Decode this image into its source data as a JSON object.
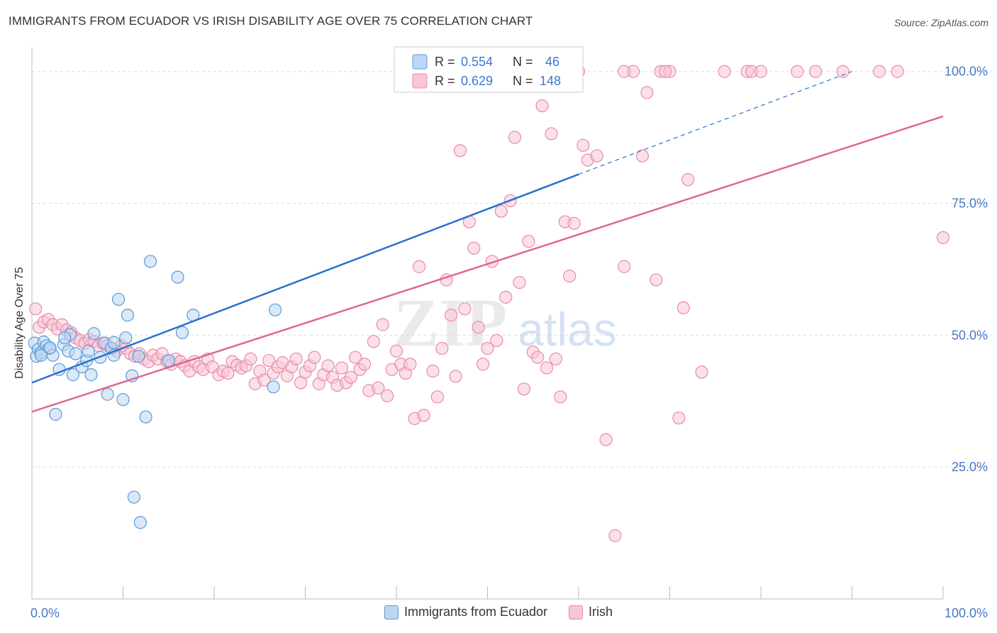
{
  "title": "IMMIGRANTS FROM ECUADOR VS IRISH DISABILITY AGE OVER 75 CORRELATION CHART",
  "source": "Source: ZipAtlas.com",
  "watermark": {
    "zip": "ZIP",
    "atlas": "atlas"
  },
  "colors": {
    "blue": "#5b9bd5",
    "blue_fill": "#bcd6f3",
    "blue_line": "#2a6fcf",
    "pink": "#e88aab",
    "pink_fill": "#f8c6d5",
    "pink_line": "#e0678f",
    "tick_label": "#4a78c8",
    "grid": "#dddddd"
  },
  "legend": {
    "rows": [
      {
        "r_label": "R =",
        "r_value": "0.554",
        "n_label": "N =",
        "n_value": "46",
        "color": "blue"
      },
      {
        "r_label": "R =",
        "r_value": "0.629",
        "n_label": "N =",
        "n_value": "148",
        "color": "pink"
      }
    ]
  },
  "chart_data": {
    "type": "scatter",
    "title": "IMMIGRANTS FROM ECUADOR VS IRISH DISABILITY AGE OVER 75 CORRELATION CHART",
    "xlabel": "",
    "ylabel": "Disability Age Over 75",
    "xlim": [
      0,
      100
    ],
    "ylim": [
      0,
      104
    ],
    "x_tick_labels": [
      "0.0%",
      "100.0%"
    ],
    "y_ticks": [
      25,
      50,
      75,
      100
    ],
    "y_tick_labels": [
      "25.0%",
      "50.0%",
      "75.0%",
      "100.0%"
    ],
    "grid": true,
    "legend_position": "top-center",
    "series": [
      {
        "name": "Immigrants from Ecuador",
        "color": "blue",
        "r": 0.554,
        "n": 46,
        "trend": {
          "x0": 0,
          "y0": 41,
          "x1": 60,
          "y1": 80.5,
          "dashed_to_x": 90,
          "dashed_to_y": 100
        },
        "points": [
          [
            0.3,
            48.5
          ],
          [
            0.5,
            46
          ],
          [
            0.7,
            47.3
          ],
          [
            1.0,
            46.7
          ],
          [
            1.3,
            48.7
          ],
          [
            1.6,
            48
          ],
          [
            1.9,
            47.5
          ],
          [
            2.3,
            46.2
          ],
          [
            2.6,
            35
          ],
          [
            3.0,
            43.5
          ],
          [
            3.5,
            48.2
          ],
          [
            4.0,
            47
          ],
          [
            4.5,
            42.5
          ],
          [
            4.8,
            46.5
          ],
          [
            5.5,
            44
          ],
          [
            6.0,
            45.2
          ],
          [
            6.5,
            42.5
          ],
          [
            6.8,
            50.3
          ],
          [
            7.5,
            45.8
          ],
          [
            8.0,
            48.5
          ],
          [
            8.3,
            38.8
          ],
          [
            8.7,
            47.5
          ],
          [
            9.0,
            46.2
          ],
          [
            9.5,
            56.8
          ],
          [
            10.0,
            37.8
          ],
          [
            10.3,
            49.5
          ],
          [
            10.5,
            53.8
          ],
          [
            11.0,
            42.3
          ],
          [
            11.2,
            19.3
          ],
          [
            11.7,
            46
          ],
          [
            11.9,
            14.5
          ],
          [
            12.5,
            34.5
          ],
          [
            13.0,
            64
          ],
          [
            15.0,
            45.2
          ],
          [
            16.0,
            61
          ],
          [
            16.5,
            50.5
          ],
          [
            17.7,
            53.8
          ],
          [
            26.5,
            40.2
          ],
          [
            26.7,
            54.8
          ],
          [
            59.0,
            100
          ],
          [
            2.0,
            47.6
          ],
          [
            4.2,
            50.1
          ],
          [
            6.2,
            47
          ],
          [
            9.0,
            48.6
          ],
          [
            1.0,
            46.2
          ],
          [
            3.6,
            49.5
          ]
        ]
      },
      {
        "name": "Irish",
        "color": "pink",
        "r": 0.629,
        "n": 148,
        "trend": {
          "x0": 0,
          "y0": 35.5,
          "x1": 100,
          "y1": 91.5
        },
        "points": [
          [
            0.4,
            55
          ],
          [
            0.8,
            51.5
          ],
          [
            1.3,
            52.5
          ],
          [
            1.8,
            53
          ],
          [
            2.3,
            52
          ],
          [
            2.8,
            51.2
          ],
          [
            3.3,
            52
          ],
          [
            3.8,
            51
          ],
          [
            4.3,
            50.5
          ],
          [
            4.8,
            49.5
          ],
          [
            5.3,
            49
          ],
          [
            5.8,
            48.5
          ],
          [
            6.3,
            49.2
          ],
          [
            6.8,
            48.8
          ],
          [
            7.3,
            48
          ],
          [
            7.8,
            48.5
          ],
          [
            8.3,
            48
          ],
          [
            8.8,
            47.5
          ],
          [
            9.3,
            47
          ],
          [
            9.8,
            48
          ],
          [
            10.3,
            47.5
          ],
          [
            10.8,
            46.5
          ],
          [
            11.3,
            46
          ],
          [
            11.8,
            46.5
          ],
          [
            12.3,
            45.5
          ],
          [
            12.8,
            45
          ],
          [
            13.3,
            46.2
          ],
          [
            13.8,
            45.5
          ],
          [
            14.3,
            46.5
          ],
          [
            14.8,
            45
          ],
          [
            15.3,
            44.5
          ],
          [
            15.8,
            45.5
          ],
          [
            16.3,
            45
          ],
          [
            16.8,
            44.2
          ],
          [
            17.3,
            43.2
          ],
          [
            17.8,
            45
          ],
          [
            18.3,
            44
          ],
          [
            18.8,
            43.5
          ],
          [
            19.3,
            45.5
          ],
          [
            19.8,
            44
          ],
          [
            20.5,
            42.5
          ],
          [
            21.0,
            43.2
          ],
          [
            21.5,
            42.8
          ],
          [
            22.0,
            45
          ],
          [
            22.5,
            44.3
          ],
          [
            23.0,
            43.8
          ],
          [
            23.5,
            44.2
          ],
          [
            24.0,
            45.5
          ],
          [
            24.5,
            40.8
          ],
          [
            25.0,
            43.2
          ],
          [
            25.5,
            41.5
          ],
          [
            26.0,
            45.2
          ],
          [
            26.5,
            42.8
          ],
          [
            27.0,
            44
          ],
          [
            27.5,
            44.8
          ],
          [
            28.0,
            42.3
          ],
          [
            28.5,
            44
          ],
          [
            29.0,
            45.5
          ],
          [
            29.5,
            41
          ],
          [
            30.0,
            43
          ],
          [
            30.5,
            44.2
          ],
          [
            31.0,
            45.8
          ],
          [
            31.5,
            40.8
          ],
          [
            32.0,
            42.5
          ],
          [
            32.5,
            44.2
          ],
          [
            33.0,
            42
          ],
          [
            33.5,
            40.5
          ],
          [
            34.0,
            43.8
          ],
          [
            34.5,
            41
          ],
          [
            35.0,
            42
          ],
          [
            35.5,
            45.8
          ],
          [
            36.0,
            43.5
          ],
          [
            36.5,
            44.5
          ],
          [
            37.0,
            39.5
          ],
          [
            37.5,
            48.8
          ],
          [
            38.0,
            40
          ],
          [
            38.5,
            52
          ],
          [
            39.0,
            38.5
          ],
          [
            39.5,
            43.5
          ],
          [
            40.0,
            47
          ],
          [
            40.5,
            44.5
          ],
          [
            41.0,
            42.8
          ],
          [
            41.5,
            44.5
          ],
          [
            42.0,
            34.2
          ],
          [
            42.5,
            63
          ],
          [
            43.0,
            34.8
          ],
          [
            44.0,
            43.2
          ],
          [
            44.5,
            38.3
          ],
          [
            45.0,
            47.5
          ],
          [
            45.5,
            60.5
          ],
          [
            46.0,
            53.8
          ],
          [
            46.5,
            42.2
          ],
          [
            47.0,
            85
          ],
          [
            47.5,
            55
          ],
          [
            48.0,
            71.5
          ],
          [
            48.5,
            66.5
          ],
          [
            49.0,
            51.5
          ],
          [
            49.5,
            44.5
          ],
          [
            50.0,
            47.5
          ],
          [
            50.5,
            64
          ],
          [
            51.0,
            49
          ],
          [
            51.5,
            73.5
          ],
          [
            52.0,
            57.2
          ],
          [
            52.5,
            75.5
          ],
          [
            53.0,
            87.5
          ],
          [
            53.5,
            60
          ],
          [
            54.0,
            39.8
          ],
          [
            54.5,
            67.8
          ],
          [
            55.0,
            46.8
          ],
          [
            55.5,
            45.8
          ],
          [
            56.0,
            93.5
          ],
          [
            56.5,
            43.8
          ],
          [
            57.0,
            88.2
          ],
          [
            57.5,
            45.5
          ],
          [
            58.0,
            38.3
          ],
          [
            58.5,
            71.5
          ],
          [
            59.0,
            61.2
          ],
          [
            59.5,
            71.2
          ],
          [
            60.5,
            86
          ],
          [
            61.0,
            83.2
          ],
          [
            62.0,
            84
          ],
          [
            63.0,
            30.2
          ],
          [
            64.0,
            12
          ],
          [
            65.0,
            63
          ],
          [
            66.0,
            100
          ],
          [
            67.0,
            84
          ],
          [
            67.5,
            96
          ],
          [
            68.5,
            60.5
          ],
          [
            69.0,
            100
          ],
          [
            70.0,
            100
          ],
          [
            71.0,
            34.3
          ],
          [
            71.5,
            55.2
          ],
          [
            72.0,
            79.5
          ],
          [
            73.5,
            43
          ],
          [
            76.0,
            100
          ],
          [
            78.5,
            100
          ],
          [
            79.0,
            100
          ],
          [
            80.0,
            100
          ],
          [
            84.0,
            100
          ],
          [
            86.0,
            100
          ],
          [
            89.0,
            100
          ],
          [
            93.0,
            100
          ],
          [
            95.0,
            100
          ],
          [
            100.0,
            68.5
          ],
          [
            55.0,
            100
          ],
          [
            65.0,
            100
          ],
          [
            69.5,
            100
          ],
          [
            60.0,
            100
          ]
        ]
      }
    ]
  },
  "bottom_legend": [
    {
      "label": "Immigrants from Ecuador",
      "color": "blue"
    },
    {
      "label": "Irish",
      "color": "pink"
    }
  ]
}
